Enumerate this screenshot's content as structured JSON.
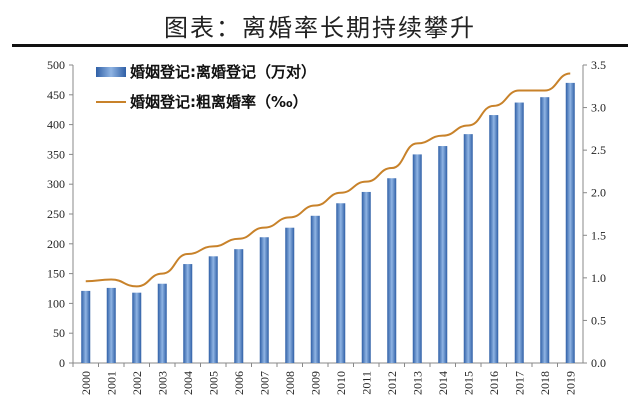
{
  "title": "图表：离婚率长期持续攀升",
  "chart_data": {
    "type": "bar+line",
    "categories": [
      "2000",
      "2001",
      "2002",
      "2003",
      "2004",
      "2005",
      "2006",
      "2007",
      "2008",
      "2009",
      "2010",
      "2011",
      "2012",
      "2013",
      "2014",
      "2015",
      "2016",
      "2017",
      "2018",
      "2019"
    ],
    "series": [
      {
        "name": "婚姻登记:离婚登记（万对）",
        "type": "bar",
        "axis": "left",
        "color": "#4a7fc1",
        "values": [
          121,
          126,
          118,
          133,
          166,
          179,
          191,
          211,
          227,
          247,
          268,
          287,
          310,
          350,
          364,
          384,
          416,
          437,
          446,
          470
        ]
      },
      {
        "name": "婚姻登记:粗离婚率（‰）",
        "type": "line",
        "axis": "right",
        "color": "#c8822a",
        "values": [
          0.96,
          0.98,
          0.9,
          1.05,
          1.28,
          1.37,
          1.46,
          1.59,
          1.71,
          1.85,
          2.0,
          2.13,
          2.29,
          2.58,
          2.67,
          2.79,
          3.02,
          3.2,
          3.2,
          3.4
        ]
      }
    ],
    "ylim_left": [
      0,
      500
    ],
    "yticks_left": [
      "0",
      "50",
      "100",
      "150",
      "200",
      "250",
      "300",
      "350",
      "400",
      "450",
      "500"
    ],
    "ylim_right": [
      0,
      3.5
    ],
    "yticks_right": [
      "0.0",
      "0.5",
      "1.0",
      "1.5",
      "2.0",
      "2.5",
      "3.0",
      "3.5"
    ],
    "legend": "top-left",
    "grid": false
  }
}
